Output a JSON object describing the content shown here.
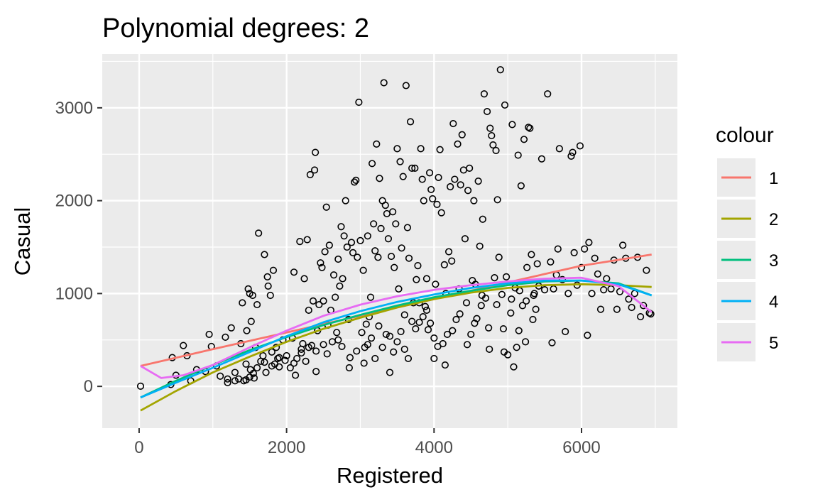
{
  "chart_data": {
    "type": "scatter",
    "title": "Polynomial degrees: 2",
    "xlabel": "Registered",
    "ylabel": "Casual",
    "xlim": [
      -500,
      7300
    ],
    "ylim": [
      -450,
      3580
    ],
    "x_ticks": [
      0,
      2000,
      4000,
      6000
    ],
    "y_ticks": [
      0,
      1000,
      2000,
      3000
    ],
    "x_tick_labels": [
      "0",
      "2000",
      "4000",
      "6000"
    ],
    "y_tick_labels": [
      "0",
      "1000",
      "2000",
      "3000"
    ],
    "grid": true,
    "background": "#ebebeb",
    "legend": {
      "title": "colour",
      "position": "right"
    },
    "points": [
      [
        20,
        2
      ],
      [
        430,
        20
      ],
      [
        450,
        310
      ],
      [
        500,
        120
      ],
      [
        600,
        440
      ],
      [
        650,
        330
      ],
      [
        700,
        60
      ],
      [
        780,
        180
      ],
      [
        900,
        160
      ],
      [
        950,
        560
      ],
      [
        980,
        430
      ],
      [
        1050,
        220
      ],
      [
        1100,
        110
      ],
      [
        1170,
        530
      ],
      [
        1200,
        40
      ],
      [
        1250,
        630
      ],
      [
        1300,
        150
      ],
      [
        1350,
        80
      ],
      [
        1380,
        460
      ],
      [
        1400,
        900
      ],
      [
        1420,
        60
      ],
      [
        1450,
        240
      ],
      [
        1460,
        600
      ],
      [
        1480,
        1050
      ],
      [
        1500,
        1000
      ],
      [
        1510,
        180
      ],
      [
        1520,
        700
      ],
      [
        1540,
        980
      ],
      [
        1560,
        90
      ],
      [
        1580,
        420
      ],
      [
        1600,
        880
      ],
      [
        1620,
        1650
      ],
      [
        1650,
        270
      ],
      [
        1680,
        330
      ],
      [
        1700,
        1420
      ],
      [
        1720,
        150
      ],
      [
        1740,
        1180
      ],
      [
        1750,
        1080
      ],
      [
        1780,
        980
      ],
      [
        1800,
        370
      ],
      [
        1820,
        1250
      ],
      [
        1840,
        240
      ],
      [
        1860,
        420
      ],
      [
        1880,
        300
      ],
      [
        1900,
        210
      ],
      [
        1950,
        500
      ],
      [
        1980,
        280
      ],
      [
        2050,
        200
      ],
      [
        2080,
        520
      ],
      [
        2100,
        1230
      ],
      [
        2120,
        120
      ],
      [
        2140,
        300
      ],
      [
        2180,
        1560
      ],
      [
        2200,
        360
      ],
      [
        2220,
        460
      ],
      [
        2240,
        1160
      ],
      [
        2260,
        270
      ],
      [
        2280,
        1580
      ],
      [
        2300,
        820
      ],
      [
        2320,
        2280
      ],
      [
        2340,
        440
      ],
      [
        2360,
        920
      ],
      [
        2380,
        2330
      ],
      [
        2390,
        2520
      ],
      [
        2400,
        160
      ],
      [
        2420,
        600
      ],
      [
        2440,
        880
      ],
      [
        2460,
        1330
      ],
      [
        2480,
        1280
      ],
      [
        2500,
        920
      ],
      [
        2520,
        1450
      ],
      [
        2540,
        1930
      ],
      [
        2560,
        660
      ],
      [
        2580,
        1520
      ],
      [
        2600,
        820
      ],
      [
        2620,
        480
      ],
      [
        2640,
        1200
      ],
      [
        2660,
        960
      ],
      [
        2680,
        580
      ],
      [
        2700,
        1370
      ],
      [
        2720,
        1080
      ],
      [
        2740,
        1720
      ],
      [
        2760,
        1160
      ],
      [
        2780,
        1620
      ],
      [
        2800,
        2000
      ],
      [
        2820,
        1500
      ],
      [
        2840,
        720
      ],
      [
        2860,
        310
      ],
      [
        2880,
        1550
      ],
      [
        2900,
        1440
      ],
      [
        2920,
        2200
      ],
      [
        2940,
        2220
      ],
      [
        2960,
        1390
      ],
      [
        2980,
        3060
      ],
      [
        3000,
        1570
      ],
      [
        3020,
        580
      ],
      [
        3040,
        1250
      ],
      [
        3060,
        420
      ],
      [
        3080,
        670
      ],
      [
        3100,
        1620
      ],
      [
        3120,
        750
      ],
      [
        3140,
        960
      ],
      [
        3160,
        2400
      ],
      [
        3180,
        1750
      ],
      [
        3200,
        1460
      ],
      [
        3220,
        2610
      ],
      [
        3240,
        1390
      ],
      [
        3260,
        2240
      ],
      [
        3280,
        1700
      ],
      [
        3300,
        2000
      ],
      [
        3320,
        3270
      ],
      [
        3340,
        1950
      ],
      [
        3360,
        1860
      ],
      [
        3380,
        1590
      ],
      [
        3400,
        540
      ],
      [
        3420,
        1400
      ],
      [
        3440,
        1880
      ],
      [
        3460,
        1280
      ],
      [
        3480,
        1750
      ],
      [
        3500,
        2560
      ],
      [
        3520,
        1050
      ],
      [
        3540,
        2420
      ],
      [
        3560,
        1490
      ],
      [
        3580,
        2260
      ],
      [
        3600,
        770
      ],
      [
        3620,
        3240
      ],
      [
        3640,
        1710
      ],
      [
        3660,
        1380
      ],
      [
        3680,
        2850
      ],
      [
        3700,
        2350
      ],
      [
        3720,
        900
      ],
      [
        3740,
        2350
      ],
      [
        3760,
        1150
      ],
      [
        3780,
        1300
      ],
      [
        3800,
        690
      ],
      [
        3820,
        2560
      ],
      [
        3840,
        2230
      ],
      [
        3860,
        2000
      ],
      [
        3880,
        860
      ],
      [
        3900,
        1160
      ],
      [
        3920,
        610
      ],
      [
        3940,
        2300
      ],
      [
        3960,
        2120
      ],
      [
        3980,
        2020
      ],
      [
        4000,
        520
      ],
      [
        4020,
        1100
      ],
      [
        4040,
        1960
      ],
      [
        4060,
        2250
      ],
      [
        4080,
        2550
      ],
      [
        4100,
        1870
      ],
      [
        4120,
        460
      ],
      [
        4140,
        1310
      ],
      [
        4160,
        1000
      ],
      [
        4180,
        560
      ],
      [
        4200,
        1450
      ],
      [
        4220,
        2150
      ],
      [
        4240,
        1350
      ],
      [
        4260,
        2830
      ],
      [
        4280,
        2230
      ],
      [
        4300,
        720
      ],
      [
        4320,
        2610
      ],
      [
        4340,
        1050
      ],
      [
        4360,
        2170
      ],
      [
        4380,
        2710
      ],
      [
        4400,
        2330
      ],
      [
        4420,
        1590
      ],
      [
        4440,
        900
      ],
      [
        4460,
        2110
      ],
      [
        4480,
        2350
      ],
      [
        4500,
        560
      ],
      [
        4520,
        1140
      ],
      [
        4540,
        2000
      ],
      [
        4560,
        1100
      ],
      [
        4580,
        730
      ],
      [
        4600,
        2210
      ],
      [
        4620,
        1510
      ],
      [
        4640,
        870
      ],
      [
        4660,
        1800
      ],
      [
        4680,
        3150
      ],
      [
        4700,
        950
      ],
      [
        4720,
        2960
      ],
      [
        4740,
        630
      ],
      [
        4760,
        2780
      ],
      [
        4780,
        2700
      ],
      [
        4800,
        2600
      ],
      [
        4820,
        1170
      ],
      [
        4840,
        2540
      ],
      [
        4860,
        2010
      ],
      [
        4880,
        1390
      ],
      [
        4900,
        3410
      ],
      [
        4920,
        990
      ],
      [
        4940,
        620
      ],
      [
        4960,
        3030
      ],
      [
        4980,
        1180
      ],
      [
        5000,
        340
      ],
      [
        5040,
        790
      ],
      [
        5060,
        2820
      ],
      [
        5080,
        210
      ],
      [
        5100,
        1060
      ],
      [
        5120,
        420
      ],
      [
        5140,
        2490
      ],
      [
        5160,
        1030
      ],
      [
        5180,
        2160
      ],
      [
        5200,
        870
      ],
      [
        5220,
        2660
      ],
      [
        5240,
        480
      ],
      [
        5260,
        1280
      ],
      [
        5280,
        2790
      ],
      [
        5300,
        2780
      ],
      [
        5320,
        1420
      ],
      [
        5340,
        720
      ],
      [
        5360,
        1000
      ],
      [
        5380,
        830
      ],
      [
        5400,
        1320
      ],
      [
        5420,
        1080
      ],
      [
        5460,
        2450
      ],
      [
        5500,
        1040
      ],
      [
        5540,
        3150
      ],
      [
        5580,
        1340
      ],
      [
        5600,
        470
      ],
      [
        5620,
        1050
      ],
      [
        5660,
        1200
      ],
      [
        5680,
        1480
      ],
      [
        5700,
        2560
      ],
      [
        5740,
        1150
      ],
      [
        5780,
        590
      ],
      [
        5820,
        1000
      ],
      [
        5860,
        2480
      ],
      [
        5880,
        2520
      ],
      [
        5900,
        1440
      ],
      [
        5940,
        1090
      ],
      [
        5980,
        2590
      ],
      [
        6000,
        1280
      ],
      [
        6040,
        1480
      ],
      [
        6080,
        550
      ],
      [
        6100,
        1550
      ],
      [
        6140,
        1000
      ],
      [
        6180,
        1380
      ],
      [
        6220,
        1210
      ],
      [
        6260,
        830
      ],
      [
        6300,
        1040
      ],
      [
        6340,
        1160
      ],
      [
        6400,
        1050
      ],
      [
        6440,
        1360
      ],
      [
        6480,
        830
      ],
      [
        6520,
        1020
      ],
      [
        6560,
        1520
      ],
      [
        6600,
        1380
      ],
      [
        6640,
        940
      ],
      [
        6680,
        850
      ],
      [
        6720,
        1000
      ],
      [
        6760,
        1390
      ],
      [
        6800,
        750
      ],
      [
        6840,
        870
      ],
      [
        6880,
        1250
      ],
      [
        6920,
        790
      ],
      [
        6940,
        780
      ],
      [
        1200,
        80
      ],
      [
        1300,
        60
      ],
      [
        1450,
        70
      ],
      [
        1500,
        100
      ],
      [
        1550,
        140
      ],
      [
        1600,
        200
      ],
      [
        1700,
        260
      ],
      [
        1800,
        220
      ],
      [
        1900,
        310
      ],
      [
        2000,
        330
      ],
      [
        2100,
        250
      ],
      [
        2200,
        400
      ],
      [
        2300,
        420
      ],
      [
        2400,
        380
      ],
      [
        2500,
        450
      ],
      [
        2550,
        350
      ],
      [
        2700,
        500
      ],
      [
        2750,
        430
      ],
      [
        2850,
        200
      ],
      [
        2950,
        380
      ],
      [
        3050,
        250
      ],
      [
        3100,
        450
      ],
      [
        3150,
        520
      ],
      [
        3200,
        300
      ],
      [
        3250,
        650
      ],
      [
        3300,
        420
      ],
      [
        3350,
        560
      ],
      [
        3400,
        150
      ],
      [
        3450,
        370
      ],
      [
        3500,
        480
      ],
      [
        3550,
        590
      ],
      [
        3600,
        400
      ],
      [
        3650,
        300
      ],
      [
        3700,
        700
      ],
      [
        3750,
        620
      ],
      [
        3800,
        900
      ],
      [
        3850,
        750
      ],
      [
        3900,
        820
      ],
      [
        3950,
        680
      ],
      [
        4000,
        300
      ],
      [
        4050,
        430
      ],
      [
        4150,
        230
      ],
      [
        4250,
        600
      ],
      [
        4350,
        780
      ],
      [
        4450,
        450
      ],
      [
        4550,
        680
      ],
      [
        4650,
        980
      ],
      [
        4750,
        400
      ],
      [
        4850,
        880
      ],
      [
        4950,
        370
      ],
      [
        5050,
        940
      ],
      [
        5150,
        600
      ],
      [
        5250,
        920
      ],
      [
        5350,
        980
      ]
    ],
    "series": [
      {
        "name": "1",
        "color": "#f8766d",
        "x": [
          20,
          1000,
          2000,
          3000,
          4000,
          5000,
          6000,
          6950
        ],
        "values": [
          220,
          400,
          580,
          760,
          940,
          1120,
          1300,
          1420
        ]
      },
      {
        "name": "2",
        "color": "#a3a500",
        "x": [
          20,
          500,
          1000,
          1500,
          2000,
          2500,
          3000,
          3500,
          4000,
          4500,
          5000,
          5500,
          6000,
          6500,
          6950
        ],
        "values": [
          -260,
          -50,
          150,
          320,
          480,
          620,
          740,
          850,
          940,
          1010,
          1060,
          1090,
          1100,
          1090,
          1070
        ]
      },
      {
        "name": "3",
        "color": "#00bf7d",
        "x": [
          20,
          500,
          1000,
          1500,
          2000,
          2500,
          3000,
          3500,
          4000,
          4500,
          5000,
          5500,
          6000,
          6500,
          6950
        ],
        "values": [
          -120,
          60,
          230,
          390,
          530,
          660,
          770,
          870,
          960,
          1030,
          1090,
          1130,
          1140,
          1110,
          980
        ]
      },
      {
        "name": "4",
        "color": "#00b0f6",
        "x": [
          20,
          500,
          1000,
          1500,
          2000,
          2500,
          3000,
          3500,
          4000,
          4500,
          5000,
          5500,
          6000,
          6500,
          6950
        ],
        "values": [
          -120,
          40,
          200,
          370,
          540,
          690,
          810,
          910,
          990,
          1060,
          1110,
          1140,
          1140,
          1100,
          980
        ]
      },
      {
        "name": "5",
        "color": "#e76bf3",
        "x": [
          20,
          300,
          600,
          1000,
          1500,
          2000,
          2500,
          3000,
          3500,
          4000,
          4500,
          5000,
          5500,
          6000,
          6500,
          6950
        ],
        "values": [
          220,
          90,
          120,
          230,
          420,
          600,
          760,
          880,
          970,
          1040,
          1090,
          1130,
          1160,
          1170,
          1080,
          800
        ]
      }
    ]
  }
}
